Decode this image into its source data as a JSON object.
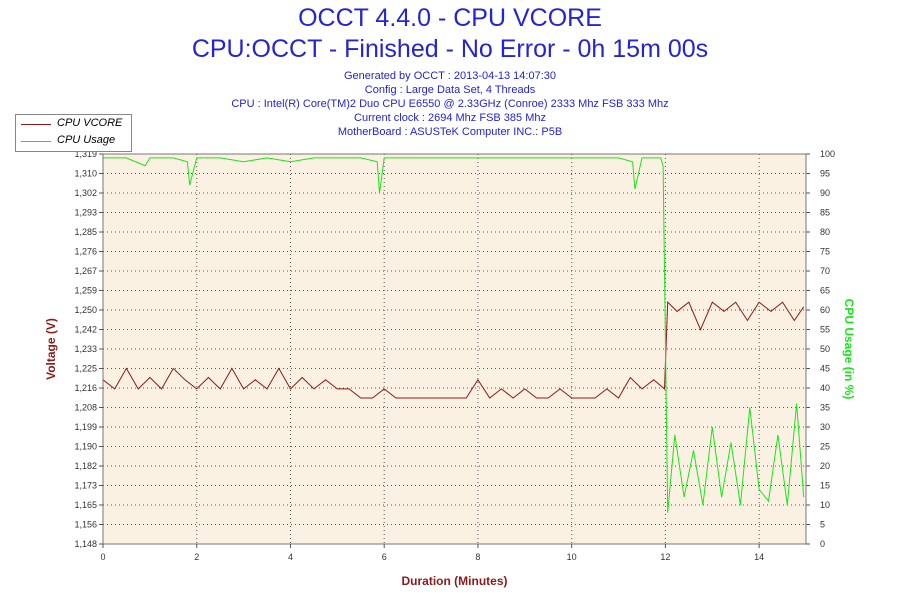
{
  "title": "OCCT 4.4.0 - CPU VCORE",
  "subtitle": "CPU:OCCT - Finished - No Error - 0h 15m 00s",
  "info_lines": [
    "Generated by OCCT : 2013-04-13 14:07:30",
    "Config : Large Data Set, 4 Threads",
    "CPU : Intel(R) Core(TM)2 Duo CPU E6550 @ 2.33GHz (Conroe) 2333 Mhz FSB 333 Mhz",
    "Current clock : 2694 Mhz FSB 385 Mhz",
    "MotherBoard : ASUSTeK Computer INC.: P5B"
  ],
  "colors": {
    "title": "#2323d7",
    "vcore": "#8b1a1a",
    "usage": "#19e619",
    "plot_bg": "#fbf1e2",
    "grid": "#555555"
  },
  "chart_data": {
    "type": "line",
    "grid": true,
    "legend_position": "top-left",
    "xlabel": "Duration (Minutes)",
    "ylabel_left": "Voltage (V)",
    "ylabel_right": "CPU Usage (in %)",
    "xlim": [
      0,
      15
    ],
    "ylim_left": [
      1.148,
      1.319
    ],
    "ylim_right": [
      0,
      100
    ],
    "x_ticks": [
      "0",
      "2",
      "4",
      "6",
      "8",
      "10",
      "12",
      "14"
    ],
    "y_left_ticks": [
      "1,148",
      "1,156",
      "1,165",
      "1,173",
      "1,182",
      "1,190",
      "1,199",
      "1,208",
      "1,216",
      "1,225",
      "1,233",
      "1,242",
      "1,250",
      "1,259",
      "1,267",
      "1,276",
      "1,285",
      "1,293",
      "1,302",
      "1,310",
      "1,319"
    ],
    "y_right_ticks": [
      "0",
      "5",
      "10",
      "15",
      "20",
      "25",
      "30",
      "35",
      "40",
      "45",
      "50",
      "55",
      "60",
      "65",
      "70",
      "75",
      "80",
      "85",
      "90",
      "95",
      "100"
    ],
    "series": [
      {
        "name": "CPU VCORE",
        "axis": "left",
        "x": [
          0,
          0.25,
          0.5,
          0.75,
          1,
          1.25,
          1.5,
          1.75,
          2,
          2.25,
          2.5,
          2.75,
          3,
          3.25,
          3.5,
          3.75,
          4,
          4.25,
          4.5,
          4.75,
          5,
          5.25,
          5.5,
          5.75,
          6,
          6.25,
          6.5,
          6.75,
          7,
          7.25,
          7.5,
          7.75,
          8,
          8.25,
          8.5,
          8.75,
          9,
          9.25,
          9.5,
          9.75,
          10,
          10.25,
          10.5,
          10.75,
          11,
          11.25,
          11.5,
          11.75,
          11.98,
          12.05,
          12.25,
          12.5,
          12.75,
          13,
          13.25,
          13.5,
          13.75,
          14,
          14.25,
          14.5,
          14.75,
          14.95
        ],
        "values": [
          1.22,
          1.216,
          1.225,
          1.216,
          1.221,
          1.216,
          1.225,
          1.22,
          1.216,
          1.221,
          1.216,
          1.225,
          1.216,
          1.22,
          1.216,
          1.225,
          1.216,
          1.221,
          1.216,
          1.22,
          1.216,
          1.216,
          1.212,
          1.212,
          1.216,
          1.212,
          1.212,
          1.212,
          1.212,
          1.212,
          1.212,
          1.212,
          1.22,
          1.212,
          1.216,
          1.212,
          1.216,
          1.212,
          1.212,
          1.216,
          1.212,
          1.212,
          1.212,
          1.216,
          1.212,
          1.221,
          1.216,
          1.22,
          1.216,
          1.254,
          1.25,
          1.254,
          1.242,
          1.254,
          1.25,
          1.254,
          1.246,
          1.254,
          1.25,
          1.254,
          1.246,
          1.252
        ]
      },
      {
        "name": "CPU Usage",
        "axis": "right",
        "x": [
          0,
          0.5,
          0.9,
          1,
          1.5,
          1.8,
          1.85,
          2,
          2.5,
          3,
          3.5,
          4,
          4.5,
          5,
          5.5,
          5.85,
          5.9,
          6,
          6.5,
          7,
          7.5,
          8,
          8.5,
          9,
          9.5,
          10,
          10.5,
          11,
          11.3,
          11.35,
          11.5,
          11.9,
          11.95,
          12.05,
          12.2,
          12.4,
          12.6,
          12.8,
          13,
          13.2,
          13.4,
          13.6,
          13.8,
          14,
          14.2,
          14.4,
          14.6,
          14.8,
          14.95
        ],
        "values": [
          99,
          99,
          97,
          99,
          99,
          98,
          92,
          99,
          99,
          98,
          99,
          98,
          99,
          99,
          99,
          98,
          90,
          99,
          99,
          99,
          99,
          99,
          99,
          99,
          99,
          99,
          99,
          99,
          98,
          91,
          99,
          99,
          97,
          8,
          28,
          12,
          24,
          10,
          30,
          12,
          26,
          10,
          35,
          14,
          11,
          28,
          10,
          36,
          12
        ]
      }
    ]
  }
}
